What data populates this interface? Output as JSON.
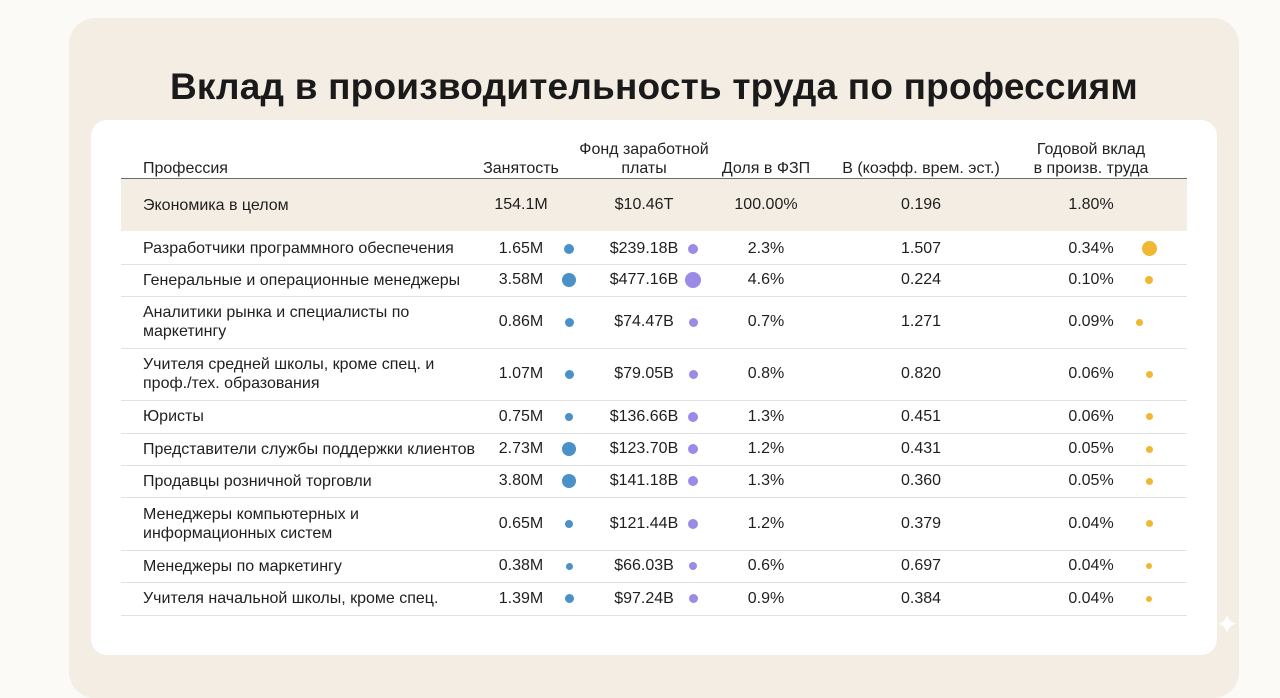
{
  "title": "Вклад в производительность труда по профессиям",
  "headers": {
    "profession": "Профессия",
    "employment": "Занятость",
    "fund_line1": "Фонд заработной",
    "fund_line2": "платы",
    "share": "Доля в ФЗП",
    "coef": "B (коэфф. врем. эст.)",
    "contrib_line1": "Годовой вклад",
    "contrib_line2": "в произв. труда"
  },
  "total": {
    "profession": "Экономика в целом",
    "employment": "154.1M",
    "fund": "$10.46T",
    "share": "100.00%",
    "coef": "0.196",
    "contrib": "1.80%"
  },
  "rows": [
    {
      "line1": "Разработчики программного обеспечения",
      "line2": "",
      "employment": "1.65M",
      "emp_m": 1.65,
      "fund": "$239.18B",
      "fund_b": 239.18,
      "share": "2.3%",
      "coef": "1.507",
      "contrib": "0.34%",
      "contrib_pct": 0.34
    },
    {
      "line1": "Генеральные и операционные менеджеры",
      "line2": "",
      "employment": "3.58M",
      "emp_m": 3.58,
      "fund": "$477.16B",
      "fund_b": 477.16,
      "share": "4.6%",
      "coef": "0.224",
      "contrib": "0.10%",
      "contrib_pct": 0.1
    },
    {
      "line1": "Аналитики рынка и специалисты по",
      "line2": "маркетингу",
      "employment": "0.86M",
      "emp_m": 0.86,
      "fund": "$74.47B",
      "fund_b": 74.47,
      "share": "0.7%",
      "coef": "1.271",
      "contrib": "0.09%",
      "contrib_pct": 0.09
    },
    {
      "line1": "Учителя средней школы, кроме спец. и",
      "line2": "проф./тех. образования",
      "employment": "1.07M",
      "emp_m": 1.07,
      "fund": "$79.05B",
      "fund_b": 79.05,
      "share": "0.8%",
      "coef": "0.820",
      "contrib": "0.06%",
      "contrib_pct": 0.06
    },
    {
      "line1": "Юристы",
      "line2": "",
      "employment": "0.75M",
      "emp_m": 0.75,
      "fund": "$136.66B",
      "fund_b": 136.66,
      "share": "1.3%",
      "coef": "0.451",
      "contrib": "0.06%",
      "contrib_pct": 0.06
    },
    {
      "line1": "Представители службы поддержки клиентов",
      "line2": "",
      "employment": "2.73M",
      "emp_m": 2.73,
      "fund": "$123.70B",
      "fund_b": 123.7,
      "share": "1.2%",
      "coef": "0.431",
      "contrib": "0.05%",
      "contrib_pct": 0.05
    },
    {
      "line1": "Продавцы розничной торговли",
      "line2": "",
      "employment": "3.80M",
      "emp_m": 3.8,
      "fund": "$141.18B",
      "fund_b": 141.18,
      "share": "1.3%",
      "coef": "0.360",
      "contrib": "0.05%",
      "contrib_pct": 0.05
    },
    {
      "line1": "Менеджеры компьютерных и",
      "line2": "информационных систем",
      "employment": "0.65M",
      "emp_m": 0.65,
      "fund": "$121.44B",
      "fund_b": 121.44,
      "share": "1.2%",
      "coef": "0.379",
      "contrib": "0.04%",
      "contrib_pct": 0.04
    },
    {
      "line1": "Менеджеры по маркетингу",
      "line2": "",
      "employment": "0.38M",
      "emp_m": 0.38,
      "fund": "$66.03B",
      "fund_b": 66.03,
      "share": "0.6%",
      "coef": "0.697",
      "contrib": "0.04%",
      "contrib_pct": 0.04
    },
    {
      "line1": "Учителя начальной школы, кроме спец.",
      "line2": "",
      "employment": "1.39M",
      "emp_m": 1.39,
      "fund": "$97.24B",
      "fund_b": 97.24,
      "share": "0.9%",
      "coef": "0.384",
      "contrib": "0.04%",
      "contrib_pct": 0.04
    }
  ],
  "colors": {
    "employment_dot": "#4a90c9",
    "fund_dot": "#9b8ae6",
    "contrib_dot": "#f0b732"
  },
  "icons": {
    "corner": "sparkle-icon"
  }
}
